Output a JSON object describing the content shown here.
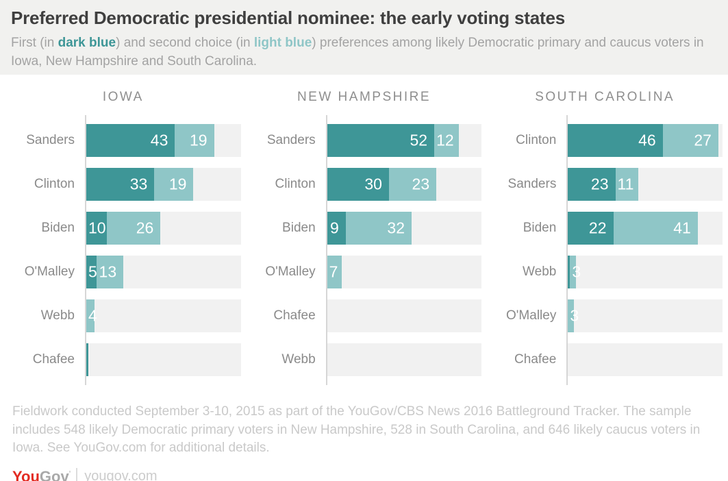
{
  "header": {
    "title": "Preferred Democratic presidential nominee: the early voting states",
    "subtitle_segments": [
      {
        "text": "First (in "
      },
      {
        "text": "dark blue",
        "style": "dark"
      },
      {
        "text": ") and second choice (in "
      },
      {
        "text": "light blue",
        "style": "light"
      },
      {
        "text": ") preferences among likely Democratic primary and caucus voters in Iowa, New Hampshire and South Carolina."
      }
    ]
  },
  "colors": {
    "first_choice": "#3e9697",
    "second_choice": "#8fc6c7",
    "track": "#f1f1f1",
    "axis": "#d6d6d6"
  },
  "chart_data": {
    "type": "bar",
    "orientation": "horizontal",
    "stacked": true,
    "xlim": [
      0,
      75
    ],
    "grid": false,
    "legend": "in subtitle: dark blue = first choice, light blue = second choice",
    "series_names": [
      "First choice",
      "Second choice"
    ],
    "charts": [
      {
        "title": "IOWA",
        "rows": [
          {
            "name": "Sanders",
            "first": 43,
            "second": 19,
            "first_label": "43",
            "second_label": "19"
          },
          {
            "name": "Clinton",
            "first": 33,
            "second": 19,
            "first_label": "33",
            "second_label": "19"
          },
          {
            "name": "Biden",
            "first": 10,
            "second": 26,
            "first_label": "10",
            "second_label": "26"
          },
          {
            "name": "O'Malley",
            "first": 5,
            "second": 13,
            "first_label": "5",
            "second_label": "13"
          },
          {
            "name": "Webb",
            "first": 0,
            "second": 4,
            "first_label": "",
            "second_label": "4"
          },
          {
            "name": "Chafee",
            "first": 1,
            "second": 0,
            "first_label": "",
            "second_label": ""
          }
        ]
      },
      {
        "title": "NEW HAMPSHIRE",
        "rows": [
          {
            "name": "Sanders",
            "first": 52,
            "second": 12,
            "first_label": "52",
            "second_label": "12"
          },
          {
            "name": "Clinton",
            "first": 30,
            "second": 23,
            "first_label": "30",
            "second_label": "23"
          },
          {
            "name": "Biden",
            "first": 9,
            "second": 32,
            "first_label": "9",
            "second_label": "32"
          },
          {
            "name": "O'Malley",
            "first": 0,
            "second": 7,
            "first_label": "",
            "second_label": "7"
          },
          {
            "name": "Chafee",
            "first": 0,
            "second": 0,
            "first_label": "",
            "second_label": ""
          },
          {
            "name": "Webb",
            "first": 0,
            "second": 0,
            "first_label": "",
            "second_label": ""
          }
        ]
      },
      {
        "title": "SOUTH CAROLINA",
        "rows": [
          {
            "name": "Clinton",
            "first": 46,
            "second": 27,
            "first_label": "46",
            "second_label": "27"
          },
          {
            "name": "Sanders",
            "first": 23,
            "second": 11,
            "first_label": "23",
            "second_label": "11"
          },
          {
            "name": "Biden",
            "first": 22,
            "second": 41,
            "first_label": "22",
            "second_label": "41"
          },
          {
            "name": "Webb",
            "first": 1,
            "second": 3,
            "first_label": "",
            "second_label": "3"
          },
          {
            "name": "O'Malley",
            "first": 0,
            "second": 3,
            "first_label": "",
            "second_label": "3"
          },
          {
            "name": "Chafee",
            "first": 0,
            "second": 0,
            "first_label": "",
            "second_label": ""
          }
        ]
      }
    ]
  },
  "footer": {
    "note": "Fieldwork conducted September 3-10, 2015 as part of the YouGov/CBS News 2016 Battleground Tracker. The sample includes 548 likely Democratic primary voters in New Hampshire, 528 in South Carolina, and 646 likely caucus voters in Iowa. See YouGov.com for additional details.",
    "logo": {
      "part1": "You",
      "part2": "Gov",
      "tick": "'",
      "site": "yougov.com"
    }
  }
}
